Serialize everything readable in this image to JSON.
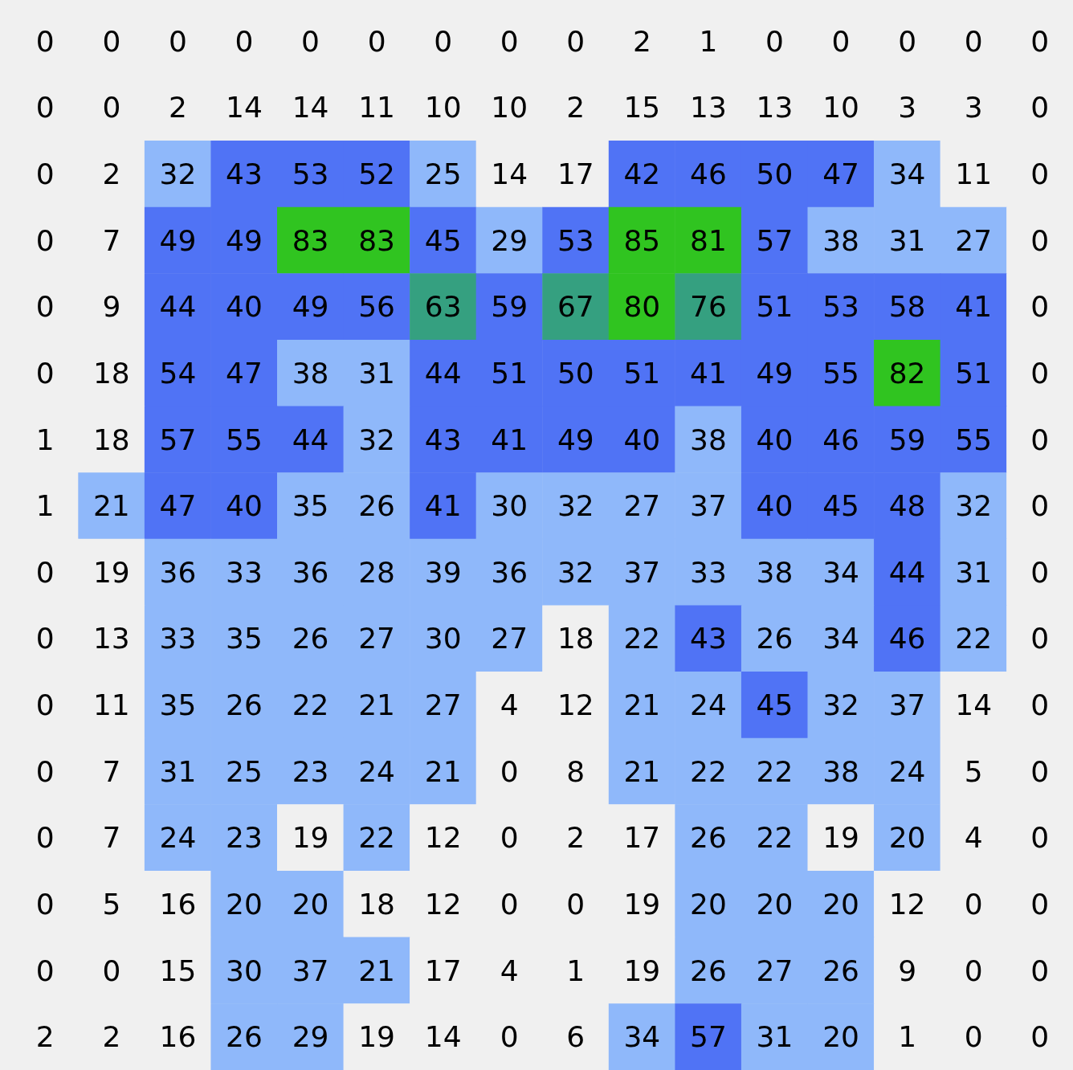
{
  "chart_data": {
    "type": "heatmap",
    "categories": [
      null,
      null,
      null,
      null,
      null,
      null,
      null,
      null,
      null,
      null,
      null,
      null,
      null,
      null,
      null,
      null
    ],
    "y_categories": [
      null,
      null,
      null,
      null,
      null,
      null,
      null,
      null,
      null,
      null,
      null,
      null,
      null,
      null,
      null,
      null
    ],
    "data_labels": true,
    "cells": [
      [
        0,
        0,
        0,
        0,
        0,
        0,
        0,
        0,
        0,
        2,
        1,
        0,
        0,
        0,
        0,
        0
      ],
      [
        0,
        0,
        2,
        14,
        14,
        11,
        10,
        10,
        2,
        15,
        13,
        13,
        10,
        3,
        3,
        0
      ],
      [
        0,
        2,
        32,
        43,
        53,
        52,
        25,
        14,
        17,
        42,
        46,
        50,
        47,
        34,
        11,
        0
      ],
      [
        0,
        7,
        49,
        49,
        83,
        83,
        45,
        29,
        53,
        85,
        81,
        57,
        38,
        31,
        27,
        0
      ],
      [
        0,
        9,
        44,
        40,
        49,
        56,
        63,
        59,
        67,
        80,
        76,
        51,
        53,
        58,
        41,
        0
      ],
      [
        0,
        18,
        54,
        47,
        38,
        31,
        44,
        51,
        50,
        51,
        41,
        49,
        55,
        82,
        51,
        0
      ],
      [
        1,
        18,
        57,
        55,
        44,
        32,
        43,
        41,
        49,
        40,
        38,
        40,
        46,
        59,
        55,
        0
      ],
      [
        1,
        21,
        47,
        40,
        35,
        26,
        41,
        30,
        32,
        27,
        37,
        40,
        45,
        48,
        32,
        0
      ],
      [
        0,
        19,
        36,
        33,
        36,
        28,
        39,
        36,
        32,
        37,
        33,
        38,
        34,
        44,
        31,
        0
      ],
      [
        0,
        13,
        33,
        35,
        26,
        27,
        30,
        27,
        18,
        22,
        43,
        26,
        34,
        46,
        22,
        0
      ],
      [
        0,
        11,
        35,
        26,
        22,
        21,
        27,
        4,
        12,
        21,
        24,
        45,
        32,
        37,
        14,
        0
      ],
      [
        0,
        7,
        31,
        25,
        23,
        24,
        21,
        0,
        8,
        21,
        22,
        22,
        38,
        24,
        5,
        0
      ],
      [
        0,
        7,
        24,
        23,
        19,
        22,
        12,
        0,
        2,
        17,
        26,
        22,
        19,
        20,
        4,
        0
      ],
      [
        0,
        5,
        16,
        20,
        20,
        18,
        12,
        0,
        0,
        19,
        20,
        20,
        20,
        12,
        0,
        0
      ],
      [
        0,
        0,
        15,
        30,
        37,
        21,
        17,
        4,
        1,
        19,
        26,
        27,
        26,
        9,
        0,
        0
      ],
      [
        2,
        2,
        16,
        26,
        29,
        19,
        14,
        0,
        6,
        34,
        57,
        31,
        20,
        1,
        0,
        0
      ]
    ]
  }
}
